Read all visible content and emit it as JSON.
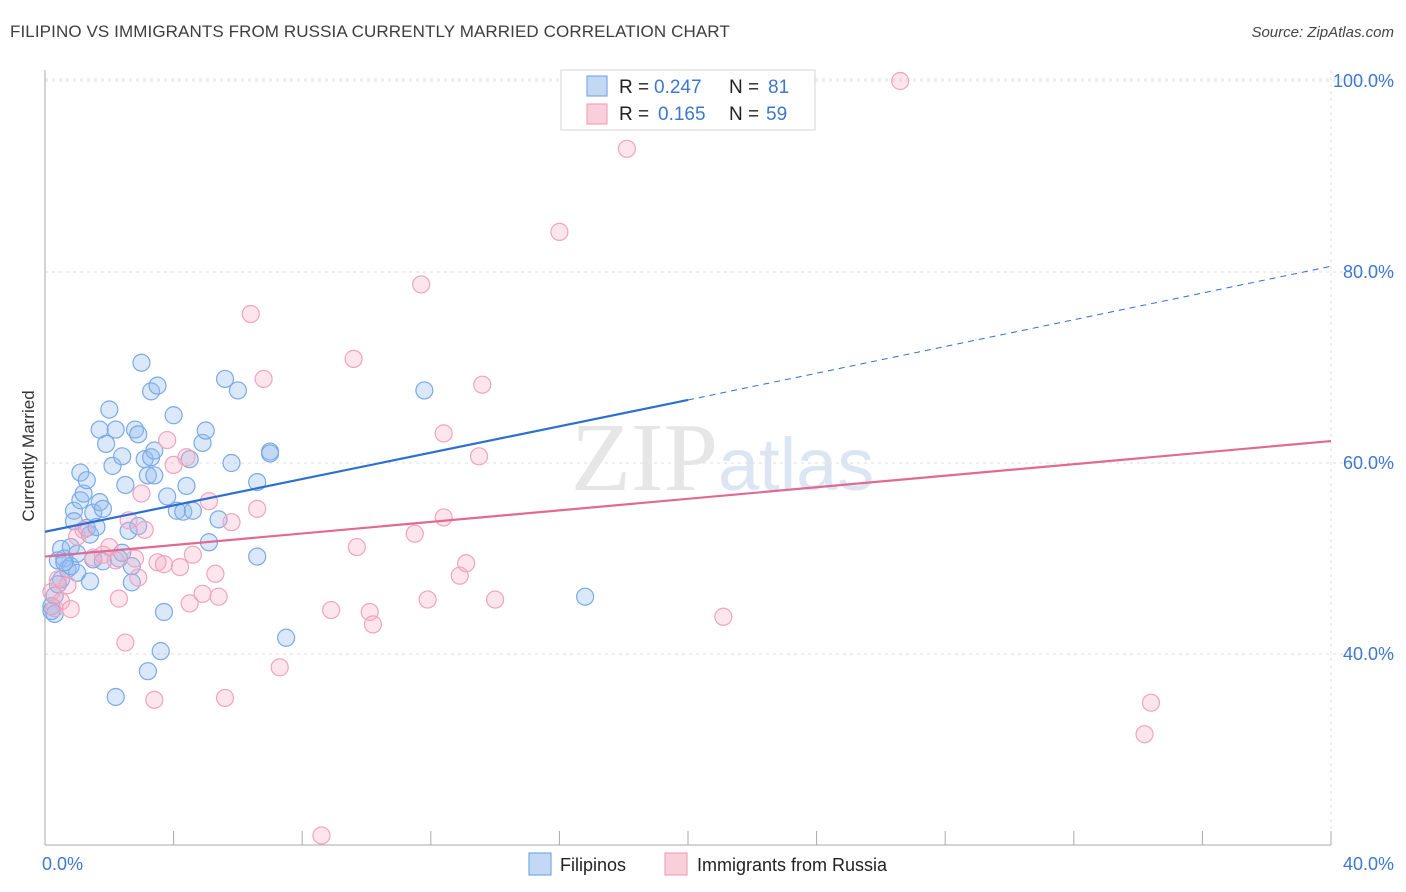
{
  "chart_data": {
    "type": "scatter",
    "title": "FILIPINO VS IMMIGRANTS FROM RUSSIA CURRENTLY MARRIED CORRELATION CHART",
    "source": "Source: ZipAtlas.com",
    "xlabel": "",
    "ylabel": "Currently Married",
    "xlim": [
      0,
      40
    ],
    "ylim": [
      20,
      102
    ],
    "x_tick_labels": [
      "0.0%",
      "40.0%"
    ],
    "y_ticks": [
      40,
      60,
      80,
      100
    ],
    "y_tick_labels": [
      "40.0%",
      "60.0%",
      "80.0%",
      "100.0%"
    ],
    "grid": true,
    "watermark": "ZIPatlas",
    "legend": {
      "rows": [
        {
          "r_label": "R =",
          "r_value": "0.247",
          "n_label": "N =",
          "n_value": "81"
        },
        {
          "r_label": "R =",
          "r_value": "0.165",
          "n_label": "N =",
          "n_value": "59"
        }
      ]
    },
    "series": [
      {
        "name": "Filipinos",
        "color": "#7aaae8",
        "line_color": "#2d6fd0",
        "trend": {
          "x0": 0,
          "y0": 52.8,
          "x1": 20,
          "y1": 66.6,
          "dashed_to_x": 40,
          "dashed_to_y": 80.6
        },
        "points": [
          [
            0.2,
            45.0
          ],
          [
            0.3,
            44.2
          ],
          [
            0.3,
            46.1
          ],
          [
            0.4,
            49.8
          ],
          [
            0.5,
            51.0
          ],
          [
            0.5,
            47.8
          ],
          [
            0.6,
            50.0
          ],
          [
            0.7,
            48.9
          ],
          [
            0.8,
            49.2
          ],
          [
            0.8,
            51.2
          ],
          [
            0.9,
            55.0
          ],
          [
            0.9,
            53.9
          ],
          [
            1.0,
            50.5
          ],
          [
            1.0,
            48.5
          ],
          [
            1.1,
            59.0
          ],
          [
            1.1,
            56.1
          ],
          [
            1.2,
            56.8
          ],
          [
            1.3,
            53.2
          ],
          [
            1.3,
            58.2
          ],
          [
            1.4,
            47.6
          ],
          [
            1.4,
            52.5
          ],
          [
            1.5,
            54.8
          ],
          [
            1.5,
            49.9
          ],
          [
            1.6,
            53.3
          ],
          [
            1.7,
            63.5
          ],
          [
            1.7,
            55.9
          ],
          [
            1.8,
            55.2
          ],
          [
            1.8,
            49.7
          ],
          [
            1.9,
            62.0
          ],
          [
            2.0,
            65.6
          ],
          [
            2.1,
            59.7
          ],
          [
            2.2,
            63.5
          ],
          [
            2.3,
            50.0
          ],
          [
            2.4,
            60.7
          ],
          [
            2.4,
            50.6
          ],
          [
            2.5,
            57.7
          ],
          [
            2.6,
            52.9
          ],
          [
            2.7,
            47.5
          ],
          [
            2.7,
            49.2
          ],
          [
            2.8,
            63.5
          ],
          [
            2.9,
            63.0
          ],
          [
            2.9,
            53.4
          ],
          [
            3.0,
            70.5
          ],
          [
            3.1,
            60.4
          ],
          [
            3.2,
            58.7
          ],
          [
            3.3,
            67.5
          ],
          [
            3.3,
            60.6
          ],
          [
            3.4,
            61.3
          ],
          [
            3.4,
            58.7
          ],
          [
            3.5,
            68.1
          ],
          [
            3.6,
            40.3
          ],
          [
            3.7,
            44.4
          ],
          [
            3.8,
            56.5
          ],
          [
            4.0,
            65.0
          ],
          [
            4.1,
            55.0
          ],
          [
            4.3,
            54.9
          ],
          [
            4.4,
            57.6
          ],
          [
            4.5,
            60.4
          ],
          [
            4.6,
            55.0
          ],
          [
            4.9,
            62.1
          ],
          [
            5.0,
            63.4
          ],
          [
            5.1,
            51.7
          ],
          [
            5.4,
            54.1
          ],
          [
            5.6,
            68.8
          ],
          [
            5.8,
            60.0
          ],
          [
            6.0,
            67.6
          ],
          [
            6.6,
            58.0
          ],
          [
            6.6,
            50.2
          ],
          [
            7.0,
            61.2
          ],
          [
            7.0,
            61.0
          ],
          [
            7.5,
            41.7
          ],
          [
            0.2,
            44.5
          ],
          [
            0.4,
            47.3
          ],
          [
            0.6,
            49.6
          ],
          [
            2.2,
            35.5
          ],
          [
            3.2,
            38.2
          ],
          [
            11.8,
            67.6
          ],
          [
            16.8,
            46.0
          ]
        ]
      },
      {
        "name": "Immigrants from Russia",
        "color": "#f2a4bc",
        "line_color": "#e06a93",
        "trend": {
          "x0": 0,
          "y0": 50.2,
          "x1": 40,
          "y1": 62.3
        },
        "points": [
          [
            0.2,
            46.5
          ],
          [
            0.3,
            44.8
          ],
          [
            0.4,
            47.8
          ],
          [
            0.5,
            45.5
          ],
          [
            0.7,
            47.2
          ],
          [
            0.8,
            44.7
          ],
          [
            1.0,
            52.3
          ],
          [
            1.2,
            53.0
          ],
          [
            1.5,
            50.1
          ],
          [
            1.8,
            50.4
          ],
          [
            2.0,
            51.2
          ],
          [
            2.2,
            49.8
          ],
          [
            2.3,
            45.8
          ],
          [
            2.5,
            41.2
          ],
          [
            2.6,
            54.0
          ],
          [
            2.8,
            50.0
          ],
          [
            2.9,
            48.0
          ],
          [
            3.0,
            56.8
          ],
          [
            3.1,
            53.0
          ],
          [
            3.4,
            35.2
          ],
          [
            3.5,
            49.6
          ],
          [
            3.7,
            49.4
          ],
          [
            3.8,
            62.4
          ],
          [
            4.0,
            59.8
          ],
          [
            4.2,
            49.1
          ],
          [
            4.4,
            60.6
          ],
          [
            4.5,
            45.3
          ],
          [
            4.6,
            50.4
          ],
          [
            4.9,
            46.3
          ],
          [
            5.1,
            56.0
          ],
          [
            5.3,
            48.4
          ],
          [
            5.4,
            46.0
          ],
          [
            5.6,
            35.4
          ],
          [
            5.8,
            53.8
          ],
          [
            6.4,
            75.6
          ],
          [
            6.6,
            55.2
          ],
          [
            6.8,
            68.8
          ],
          [
            7.3,
            38.6
          ],
          [
            8.6,
            21.0
          ],
          [
            8.9,
            44.6
          ],
          [
            9.6,
            70.9
          ],
          [
            9.7,
            51.2
          ],
          [
            10.1,
            44.4
          ],
          [
            10.2,
            43.1
          ],
          [
            11.5,
            52.6
          ],
          [
            11.7,
            78.7
          ],
          [
            11.9,
            45.7
          ],
          [
            12.4,
            63.1
          ],
          [
            12.4,
            54.3
          ],
          [
            12.9,
            48.2
          ],
          [
            13.1,
            49.5
          ],
          [
            13.5,
            60.7
          ],
          [
            13.6,
            68.2
          ],
          [
            14.0,
            45.7
          ],
          [
            16.0,
            84.2
          ],
          [
            18.1,
            92.9
          ],
          [
            21.1,
            43.9
          ],
          [
            26.6,
            100.0
          ],
          [
            34.4,
            34.9
          ],
          [
            34.2,
            31.6
          ]
        ]
      }
    ]
  }
}
